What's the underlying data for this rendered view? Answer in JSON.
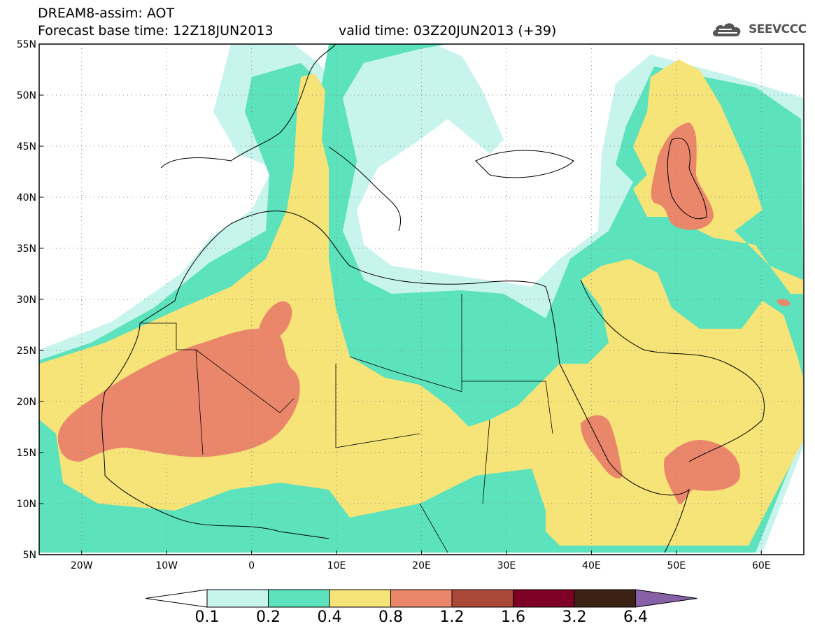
{
  "title": {
    "line1": "DREAM8-assim: AOT",
    "line2": "Forecast base time: 12Z18JUN2013",
    "line3": "valid time: 03Z20JUN2013 (+39)"
  },
  "logo": {
    "text": "SEEVCCC",
    "icon": "cloud-icon"
  },
  "map": {
    "lat_labels": [
      "55N",
      "50N",
      "45N",
      "40N",
      "35N",
      "30N",
      "25N",
      "20N",
      "15N",
      "10N",
      "5N"
    ],
    "lon_labels": [
      "20W",
      "10W",
      "0",
      "10E",
      "20E",
      "30E",
      "40E",
      "50E",
      "60E"
    ],
    "lat_range": [
      5,
      55
    ],
    "lon_range": [
      -25,
      65
    ],
    "grid": "dotted"
  },
  "colorbar": {
    "levels": [
      "0.1",
      "0.2",
      "0.4",
      "0.8",
      "1.2",
      "1.6",
      "3.2",
      "6.4"
    ],
    "colors": {
      "low_arrow": "#ffffff",
      "c1": "#c8f4ee",
      "c2": "#5ce2bc",
      "c3": "#f6e478",
      "c4": "#ea866a",
      "c5": "#aa4838",
      "c6": "#7e0024",
      "c7": "#3c2214",
      "high_arrow": "#8860a8"
    }
  }
}
